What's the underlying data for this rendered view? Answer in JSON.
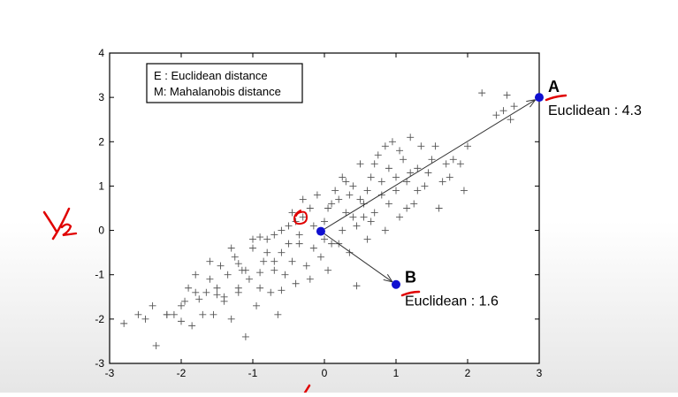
{
  "chart_data": {
    "type": "scatter",
    "xlim": [
      -3,
      3
    ],
    "ylim": [
      -3,
      4
    ],
    "x_ticks": [
      "-3",
      "-2",
      "-1",
      "0",
      "1",
      "2",
      "3"
    ],
    "y_ticks": [
      "-3",
      "-2",
      "-1",
      "0",
      "1",
      "2",
      "3",
      "4"
    ],
    "grid": false,
    "legend_placement": "top-left",
    "legend": {
      "line1": "E : Euclidean distance",
      "line2": "M: Mahalanobis distance"
    },
    "marker": "+",
    "marker_color": "#555555",
    "highlight_color": "#1010d0",
    "arrow_color": "#333333",
    "origin": {
      "x": -0.05,
      "y": -0.02
    },
    "point_a": {
      "label": "A",
      "x": 3.0,
      "y": 3.0,
      "annotation": "Euclidean : 4.3"
    },
    "point_b": {
      "label": "B",
      "x": 1.0,
      "y": -1.22,
      "annotation": "Euclidean : 1.6"
    },
    "cloud": [
      [
        -2.8,
        -2.1
      ],
      [
        -2.6,
        -1.9
      ],
      [
        -2.5,
        -2.0
      ],
      [
        -2.4,
        -1.7
      ],
      [
        -2.35,
        -2.6
      ],
      [
        -2.2,
        -1.9
      ],
      [
        -2.1,
        -1.9
      ],
      [
        -2.0,
        -2.05
      ],
      [
        -1.95,
        -1.6
      ],
      [
        -1.9,
        -1.3
      ],
      [
        -1.85,
        -2.15
      ],
      [
        -1.8,
        -1.0
      ],
      [
        -1.75,
        -1.55
      ],
      [
        -1.7,
        -1.9
      ],
      [
        -1.65,
        -1.4
      ],
      [
        -1.6,
        -1.1
      ],
      [
        -1.55,
        -1.9
      ],
      [
        -1.5,
        -1.3
      ],
      [
        -1.45,
        -0.8
      ],
      [
        -1.4,
        -1.6
      ],
      [
        -1.35,
        -1.0
      ],
      [
        -1.3,
        -2.0
      ],
      [
        -1.25,
        -0.6
      ],
      [
        -1.2,
        -1.3
      ],
      [
        -1.15,
        -0.9
      ],
      [
        -1.1,
        -2.4
      ],
      [
        -1.05,
        -1.1
      ],
      [
        -1.0,
        -0.4
      ],
      [
        -0.95,
        -1.7
      ],
      [
        -0.9,
        -1.3
      ],
      [
        -0.85,
        -0.7
      ],
      [
        -0.8,
        -0.2
      ],
      [
        -0.75,
        -1.4
      ],
      [
        -0.7,
        -0.9
      ],
      [
        -0.65,
        -1.9
      ],
      [
        -0.6,
        -0.5
      ],
      [
        -0.55,
        -1.0
      ],
      [
        -0.5,
        0.1
      ],
      [
        -0.45,
        -0.7
      ],
      [
        -0.4,
        -1.2
      ],
      [
        -0.35,
        -0.3
      ],
      [
        -0.3,
        0.3
      ],
      [
        -0.25,
        -0.8
      ],
      [
        -0.2,
        0.5
      ],
      [
        -0.15,
        -0.4
      ],
      [
        -0.1,
        0.8
      ],
      [
        -0.05,
        -0.6
      ],
      [
        0.0,
        0.2
      ],
      [
        0.05,
        -0.9
      ],
      [
        0.1,
        0.6
      ],
      [
        0.15,
        0.9
      ],
      [
        0.2,
        -0.3
      ],
      [
        0.25,
        1.2
      ],
      [
        0.3,
        0.4
      ],
      [
        0.35,
        -0.5
      ],
      [
        0.4,
        1.0
      ],
      [
        0.45,
        0.1
      ],
      [
        0.5,
        1.5
      ],
      [
        0.55,
        0.6
      ],
      [
        0.6,
        -0.2
      ],
      [
        0.65,
        1.2
      ],
      [
        0.7,
        0.4
      ],
      [
        0.75,
        1.7
      ],
      [
        0.8,
        0.8
      ],
      [
        0.85,
        0.0
      ],
      [
        0.9,
        1.4
      ],
      [
        0.95,
        2.0
      ],
      [
        1.0,
        0.9
      ],
      [
        1.05,
        0.3
      ],
      [
        1.1,
        1.6
      ],
      [
        1.15,
        1.1
      ],
      [
        1.2,
        2.1
      ],
      [
        1.25,
        0.6
      ],
      [
        1.3,
        1.4
      ],
      [
        1.35,
        1.9
      ],
      [
        1.4,
        1.0
      ],
      [
        1.5,
        1.6
      ],
      [
        1.6,
        0.5
      ],
      [
        1.65,
        1.1
      ],
      [
        1.7,
        1.5
      ],
      [
        1.8,
        1.6
      ],
      [
        1.95,
        0.9
      ],
      [
        2.0,
        1.9
      ],
      [
        2.2,
        3.1
      ],
      [
        2.4,
        2.6
      ],
      [
        2.5,
        2.7
      ],
      [
        2.55,
        3.05
      ],
      [
        2.6,
        2.5
      ],
      [
        2.65,
        2.8
      ],
      [
        -2.2,
        -1.9
      ],
      [
        -1.5,
        -1.45
      ],
      [
        -1.2,
        -1.4
      ],
      [
        -0.9,
        -0.95
      ],
      [
        -0.6,
        -1.35
      ],
      [
        -0.4,
        0.2
      ],
      [
        0.0,
        -0.2
      ],
      [
        0.3,
        1.1
      ],
      [
        0.6,
        0.9
      ],
      [
        0.8,
        1.1
      ],
      [
        0.45,
        -1.25
      ],
      [
        -1.8,
        -1.4
      ],
      [
        -1.0,
        -0.2
      ],
      [
        -0.7,
        -0.1
      ],
      [
        -0.5,
        -0.3
      ],
      [
        -0.3,
        0.7
      ],
      [
        0.2,
        0.7
      ],
      [
        0.5,
        0.7
      ],
      [
        0.7,
        1.5
      ],
      [
        1.0,
        1.2
      ],
      [
        1.3,
        0.9
      ],
      [
        -2.0,
        -1.7
      ],
      [
        -1.4,
        -1.5
      ],
      [
        -1.1,
        -0.9
      ],
      [
        -0.8,
        -0.5
      ],
      [
        -0.6,
        0.0
      ],
      [
        -0.2,
        -1.1
      ],
      [
        0.1,
        -0.3
      ],
      [
        0.4,
        0.3
      ],
      [
        0.9,
        0.6
      ],
      [
        1.2,
        1.3
      ],
      [
        -1.3,
        -0.4
      ],
      [
        -0.9,
        -0.15
      ],
      [
        -0.45,
        0.4
      ],
      [
        -0.15,
        0.1
      ],
      [
        0.25,
        0.0
      ],
      [
        0.55,
        0.3
      ],
      [
        0.85,
        1.9
      ],
      [
        1.05,
        1.8
      ],
      [
        1.45,
        1.3
      ],
      [
        1.75,
        1.2
      ],
      [
        -1.6,
        -0.7
      ],
      [
        -1.2,
        -0.75
      ],
      [
        -0.7,
        -0.7
      ],
      [
        -0.35,
        -0.1
      ],
      [
        0.05,
        0.5
      ],
      [
        0.35,
        0.8
      ],
      [
        0.65,
        0.2
      ],
      [
        1.15,
        0.5
      ],
      [
        1.55,
        1.9
      ],
      [
        1.9,
        1.5
      ]
    ]
  },
  "annotations": {
    "handwritten_y_label": "y₂",
    "handwritten_origin_label": "O"
  }
}
